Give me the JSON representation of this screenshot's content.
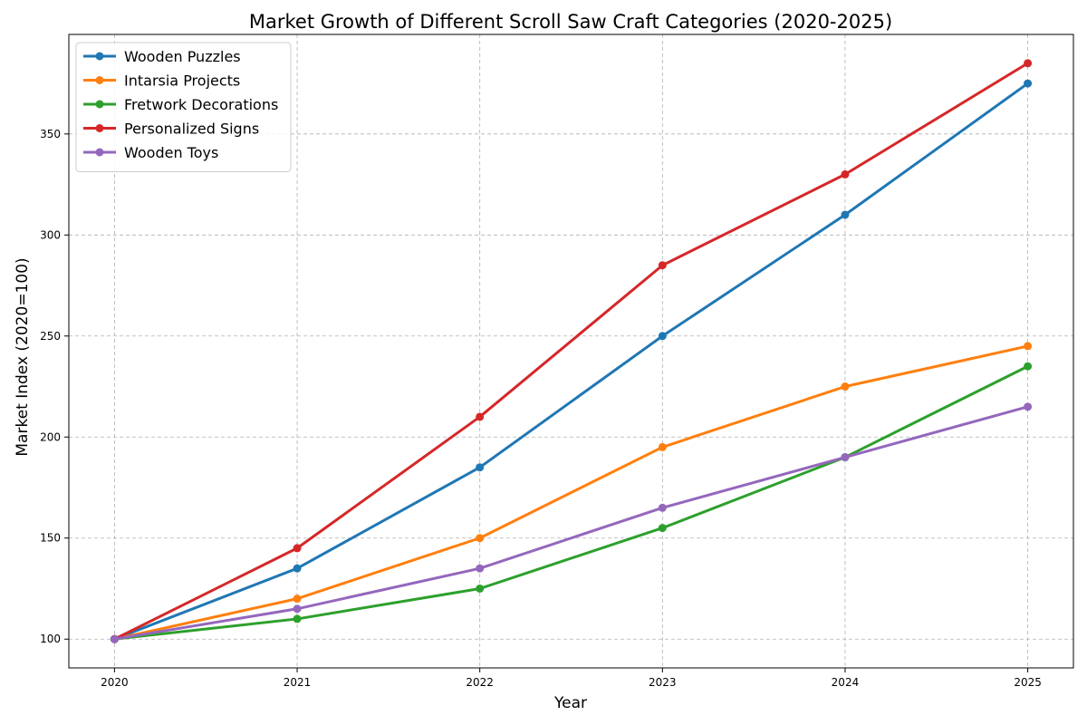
{
  "chart_data": {
    "type": "line",
    "title": "Market Growth of Different Scroll Saw Craft Categories (2020-2025)",
    "xlabel": "Year",
    "ylabel": "Market Index (2020=100)",
    "x": [
      2020,
      2021,
      2022,
      2023,
      2024,
      2025
    ],
    "x_ticks": [
      "2020",
      "2021",
      "2022",
      "2023",
      "2024",
      "2025"
    ],
    "y_ticks": [
      "100",
      "150",
      "200",
      "250",
      "300",
      "350"
    ],
    "xlim": [
      2019.75,
      2025.25
    ],
    "ylim": [
      85.75,
      399.25
    ],
    "grid": true,
    "legend_position": "top-left",
    "series": [
      {
        "name": "Wooden Puzzles",
        "color": "#1f77b4",
        "values": [
          100,
          135,
          185,
          250,
          310,
          375
        ]
      },
      {
        "name": "Intarsia Projects",
        "color": "#ff7f0e",
        "values": [
          100,
          120,
          150,
          195,
          225,
          245
        ]
      },
      {
        "name": "Fretwork Decorations",
        "color": "#2ca02c",
        "values": [
          100,
          110,
          125,
          155,
          190,
          235
        ]
      },
      {
        "name": "Personalized Signs",
        "color": "#d62728",
        "values": [
          100,
          145,
          210,
          285,
          330,
          385
        ]
      },
      {
        "name": "Wooden Toys",
        "color": "#9467bd",
        "values": [
          100,
          115,
          135,
          165,
          190,
          215
        ]
      }
    ]
  }
}
